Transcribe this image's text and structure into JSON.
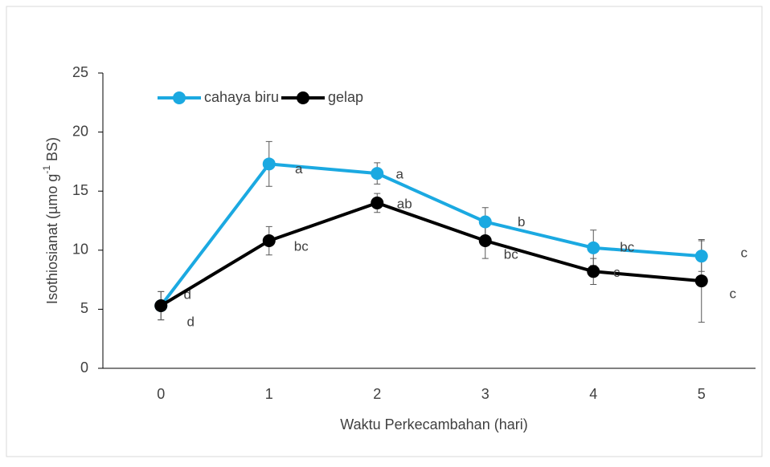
{
  "chart_data": {
    "type": "line",
    "y_label": [
      "Isothiosianat (µmo g",
      "-1",
      " BS)"
    ],
    "x_label": "Waktu Perkecambahan (hari)",
    "categories": [
      "0",
      "1",
      "2",
      "3",
      "4",
      "5"
    ],
    "series": [
      {
        "name": "cahaya biru",
        "color": "#1ba9e1",
        "values": [
          5.3,
          17.3,
          16.5,
          12.4,
          10.2,
          9.5
        ],
        "errors": [
          1.2,
          1.9,
          0.9,
          1.2,
          1.5,
          1.3
        ],
        "letters": [
          "d",
          "a",
          "a",
          "b",
          "bc",
          "c"
        ]
      },
      {
        "name": "gelap",
        "color": "#000000",
        "values": [
          5.3,
          10.8,
          14.0,
          10.8,
          8.2,
          7.4
        ],
        "errors": [
          1.2,
          1.2,
          0.8,
          1.5,
          1.1,
          3.5
        ],
        "letters": [
          "d",
          "bc",
          "ab",
          "bc",
          "c",
          "c"
        ]
      }
    ],
    "ylim": [
      0,
      25
    ],
    "yticks": [
      0,
      5,
      10,
      15,
      20,
      25
    ],
    "grid": false,
    "legend": "top-left"
  }
}
